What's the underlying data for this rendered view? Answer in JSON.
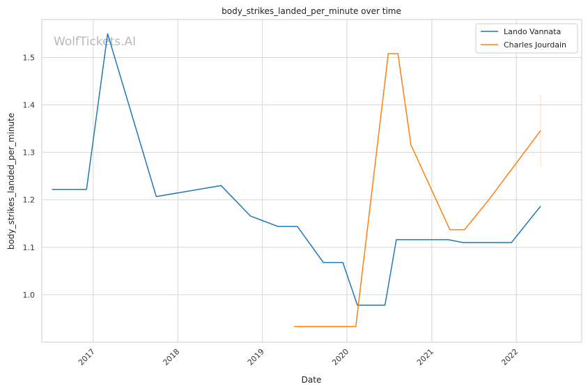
{
  "chart_data": {
    "type": "line",
    "title": "body_strikes_landed_per_minute over time",
    "xlabel": "Date",
    "ylabel": "body_strikes_landed_per_minute",
    "watermark": "WolfTickets.AI",
    "x_ticks": [
      "2017",
      "2018",
      "2019",
      "2020",
      "2021",
      "2022"
    ],
    "y_ticks": [
      "1.0",
      "1.1",
      "1.2",
      "1.3",
      "1.4",
      "1.5"
    ],
    "xlim": [
      "2016-05-24",
      "2022-10-10"
    ],
    "ylim": [
      0.9,
      1.58
    ],
    "grid": true,
    "legend_position": "top-right",
    "colors": {
      "Lando Vannata": "#1f77b4",
      "Charles Jourdain": "#ff7f0e",
      "grid": "#d6d6d6",
      "frame": "#cccccc"
    },
    "series": [
      {
        "name": "Lando Vannata",
        "points": [
          {
            "x": "2016-07-07",
            "y": 1.222
          },
          {
            "x": "2016-12-03",
            "y": 1.222
          },
          {
            "x": "2017-03-04",
            "y": 1.55
          },
          {
            "x": "2017-09-30",
            "y": 1.207
          },
          {
            "x": "2018-07-07",
            "y": 1.23
          },
          {
            "x": "2018-11-10",
            "y": 1.166
          },
          {
            "x": "2019-03-09",
            "y": 1.144
          },
          {
            "x": "2019-06-01",
            "y": 1.144
          },
          {
            "x": "2019-09-21",
            "y": 1.068
          },
          {
            "x": "2019-12-14",
            "y": 1.068
          },
          {
            "x": "2020-02-15",
            "y": 0.978
          },
          {
            "x": "2020-06-13",
            "y": 0.978
          },
          {
            "x": "2020-08-01",
            "y": 1.116
          },
          {
            "x": "2021-03-13",
            "y": 1.116
          },
          {
            "x": "2021-05-15",
            "y": 1.11
          },
          {
            "x": "2021-12-11",
            "y": 1.11
          },
          {
            "x": "2022-04-16",
            "y": 1.187
          }
        ]
      },
      {
        "name": "Charles Jourdain",
        "points": [
          {
            "x": "2019-05-18",
            "y": 0.933
          },
          {
            "x": "2020-02-08",
            "y": 0.933
          },
          {
            "x": "2020-06-27",
            "y": 1.508
          },
          {
            "x": "2020-08-08",
            "y": 1.508
          },
          {
            "x": "2020-10-03",
            "y": 1.316
          },
          {
            "x": "2021-03-20",
            "y": 1.137
          },
          {
            "x": "2021-05-22",
            "y": 1.137
          },
          {
            "x": "2021-09-04",
            "y": 1.2
          },
          {
            "x": "2022-04-16",
            "y": 1.346
          }
        ],
        "error_band": {
          "x": "2022-04-16",
          "low": 1.27,
          "high": 1.422
        }
      }
    ]
  }
}
